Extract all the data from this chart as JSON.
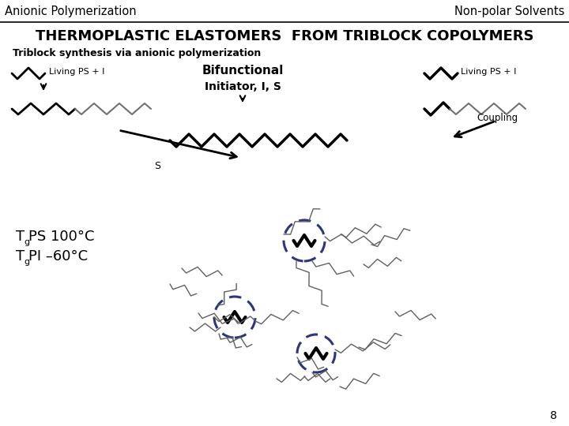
{
  "title_left": "Anionic Polymerization",
  "title_right": "Non-polar Solvents",
  "header": "THERMOPLASTIC ELASTOMERS  FROM TRIBLOCK COPOLYMERS",
  "subtitle": "Triblock synthesis via anionic polymerization",
  "label_living_ps_left": "Living PS + I",
  "label_living_ps_right": "Living PS + I",
  "label_bifunctional": "Bifunctional",
  "label_initiator": "Initiator, I, S",
  "label_s": "S",
  "label_coupling": "Coupling",
  "label_tg_ps_main": "PS 100°C",
  "label_tg_pi_main": "PI –60°C",
  "page_num": "8",
  "bg_color": "#ffffff",
  "dashed_circle_color": "#2d3580"
}
